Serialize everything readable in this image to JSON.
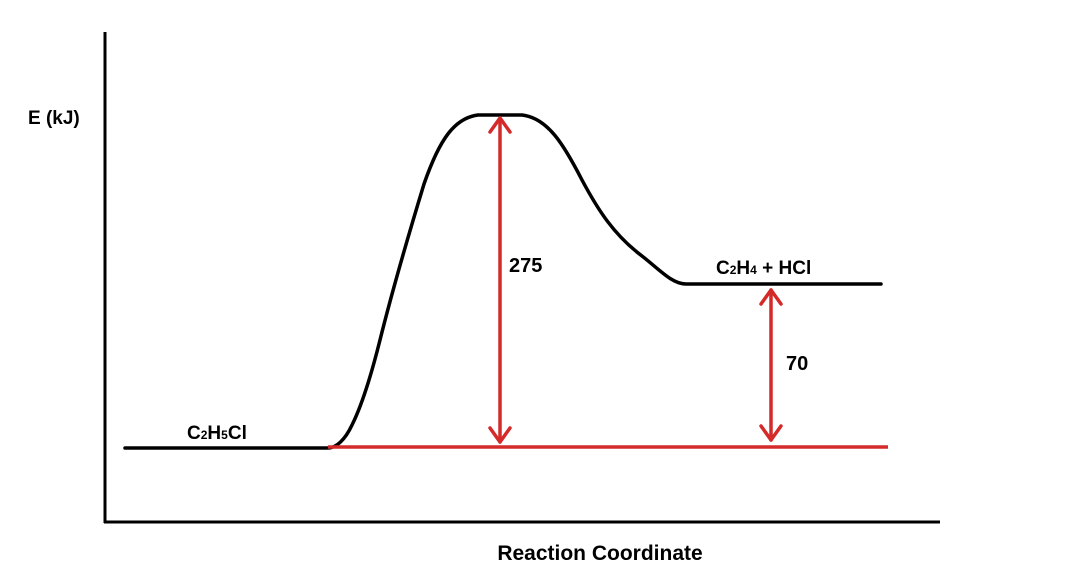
{
  "axes": {
    "y_label": "E (kJ)",
    "x_label": "Reaction Coordinate"
  },
  "reactant": {
    "formula": "C2H5Cl",
    "parts": [
      {
        "t": "C",
        "sub": false
      },
      {
        "t": "2",
        "sub": true
      },
      {
        "t": "H",
        "sub": false
      },
      {
        "t": "5",
        "sub": true
      },
      {
        "t": "Cl",
        "sub": false
      }
    ]
  },
  "products": {
    "formula": "C2H4 + HCl",
    "parts": [
      {
        "t": "C",
        "sub": false
      },
      {
        "t": "2",
        "sub": true
      },
      {
        "t": "H",
        "sub": false
      },
      {
        "t": "4",
        "sub": true
      },
      {
        "t": " + HCl",
        "sub": false
      }
    ]
  },
  "activation_energy": {
    "value": "275"
  },
  "reaction_energy": {
    "value": "70"
  },
  "colors": {
    "curve": "#000000",
    "axes": "#000000",
    "annotation": "#d42a2a"
  }
}
